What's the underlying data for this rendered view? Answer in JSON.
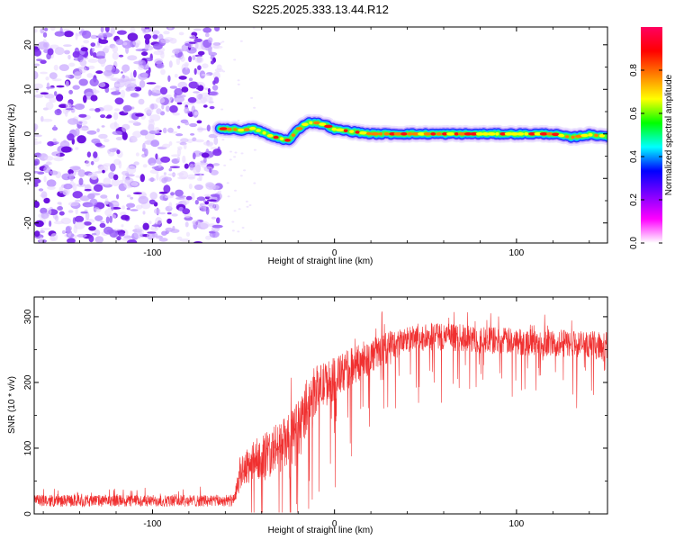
{
  "title": "S225.2025.333.13.44.R12",
  "chart_data": [
    {
      "type": "heatmap",
      "xlabel": "Height of straight line (km)",
      "ylabel": "Frequency (Hz)",
      "xlim": [
        -165,
        150
      ],
      "ylim": [
        -24.5,
        24
      ],
      "xticks": [
        -100,
        0,
        100
      ],
      "yticks": [
        -20,
        -10,
        0,
        10,
        20
      ],
      "noise_region_x": [
        -165,
        -63
      ],
      "signal_track": {
        "x": [
          -63,
          -55,
          -50,
          -45,
          -40,
          -35,
          -30,
          -25,
          -20,
          -15,
          -10,
          -5,
          0,
          5,
          10,
          20,
          40,
          60,
          80,
          100,
          120,
          130,
          140,
          150
        ],
        "freq": [
          1.2,
          1.0,
          0.8,
          1.2,
          0.5,
          -0.5,
          -1.0,
          -1.5,
          1.0,
          2.5,
          2.5,
          2.0,
          1.0,
          0.8,
          0.5,
          0.0,
          0.0,
          0.0,
          0.0,
          0.0,
          0.0,
          -0.8,
          -0.2,
          -0.5
        ]
      },
      "colorbar": {
        "label": "Normalized spectral amplitude",
        "range": [
          0.0,
          1.0
        ],
        "ticks": [
          "0.0",
          "0.2",
          "0.4",
          "0.6",
          "0.8"
        ],
        "colors": [
          "#ffffff",
          "#ff00ff",
          "#8000ff",
          "#0000ff",
          "#00ffff",
          "#00ff00",
          "#ffff00",
          "#ff8000",
          "#ff0000",
          "#ff0060"
        ]
      }
    },
    {
      "type": "line",
      "xlabel": "Height of straight line (km)",
      "ylabel": "SNR (10 * v/v)",
      "xlim": [
        -165,
        150
      ],
      "ylim": [
        0,
        330
      ],
      "xticks": [
        -100,
        0,
        100
      ],
      "yticks": [
        0,
        100,
        200,
        300
      ],
      "color": "#f03030",
      "envelope": {
        "x": [
          -165,
          -55,
          -52,
          -45,
          -35,
          -25,
          -20,
          -15,
          -10,
          0,
          10,
          20,
          30,
          40,
          60,
          80,
          100,
          120,
          140,
          150
        ],
        "base": [
          20,
          20,
          60,
          80,
          95,
          110,
          120,
          170,
          190,
          205,
          225,
          240,
          255,
          265,
          270,
          265,
          262,
          260,
          258,
          255
        ],
        "spread": [
          15,
          15,
          40,
          50,
          60,
          70,
          80,
          70,
          60,
          55,
          50,
          45,
          40,
          35,
          35,
          35,
          35,
          35,
          35,
          35
        ]
      }
    }
  ]
}
